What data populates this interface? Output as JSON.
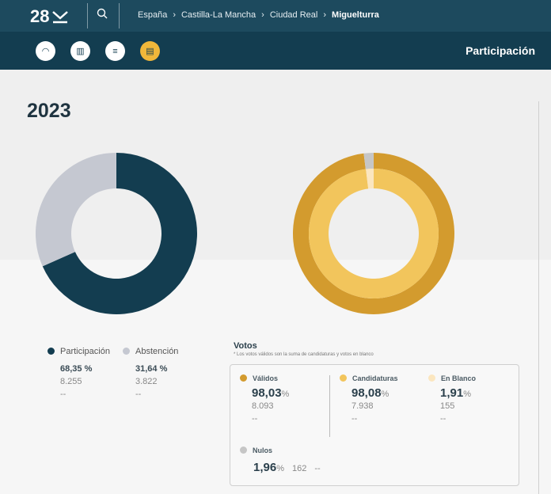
{
  "header": {
    "logo": "28",
    "breadcrumb": [
      "España",
      "Castilla-La Mancha",
      "Ciudad Real"
    ],
    "current": "Miguelturra",
    "section": "Participación"
  },
  "nav_icons": [
    "gauge-icon",
    "bar-chart-icon",
    "candidates-icon",
    "participation-icon"
  ],
  "year": "2023",
  "participation": {
    "items": [
      {
        "label": "Participación",
        "pct": "68,35 %",
        "votes": "8.255",
        "extra": "--",
        "value": 68.35,
        "color": "#133d50"
      },
      {
        "label": "Abstención",
        "pct": "31,64 %",
        "votes": "3.822",
        "extra": "--",
        "value": 31.64,
        "color": "#c5c8d1"
      }
    ]
  },
  "votos": {
    "title": "Votos",
    "note": "* Los votos válidos son la suma de candidaturas y votos en blanco",
    "validos": {
      "label": "Válidos",
      "pct": "98,03",
      "votes": "8.093",
      "extra": "--",
      "value": 98.03,
      "color": "#d39b2e"
    },
    "candidaturas": {
      "label": "Candidaturas",
      "pct": "98,08",
      "votes": "7.938",
      "extra": "--",
      "value": 98.08,
      "color": "#f2c55c"
    },
    "blanco": {
      "label": "En Blanco",
      "pct": "1,91",
      "votes": "155",
      "extra": "--",
      "value": 1.91,
      "color": "#fbe6bf"
    },
    "nulos": {
      "label": "Nulos",
      "pct": "1,96",
      "votes": "162",
      "extra": "--",
      "value": 1.96,
      "color": "#c6c6c6"
    },
    "pct_sign": "%"
  }
}
